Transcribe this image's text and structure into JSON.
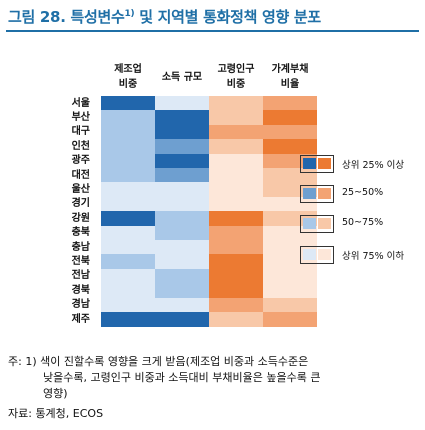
{
  "figure": {
    "title": "그림 28. 특성변수",
    "title_sup": "1)",
    "title_rest": " 및 지역별 통화정책 영향 분포"
  },
  "chart_data": {
    "type": "heatmap",
    "columns": [
      "제조업\n비중",
      "소득 규모",
      "고령인구\n비중",
      "가계부채\n비율"
    ],
    "rows": [
      "서울",
      "부산",
      "대구",
      "인천",
      "광주",
      "대전",
      "울산",
      "경기",
      "강원",
      "충북",
      "충남",
      "전북",
      "전남",
      "경북",
      "경남",
      "제주"
    ],
    "levels": [
      [
        1,
        4,
        3,
        2
      ],
      [
        3,
        1,
        3,
        1
      ],
      [
        3,
        1,
        2,
        2
      ],
      [
        3,
        2,
        3,
        1
      ],
      [
        3,
        1,
        4,
        2
      ],
      [
        3,
        2,
        4,
        3
      ],
      [
        4,
        4,
        4,
        3
      ],
      [
        4,
        4,
        4,
        4
      ],
      [
        1,
        3,
        1,
        3
      ],
      [
        4,
        3,
        2,
        4
      ],
      [
        4,
        4,
        2,
        4
      ],
      [
        3,
        4,
        1,
        4
      ],
      [
        4,
        3,
        1,
        4
      ],
      [
        4,
        3,
        1,
        4
      ],
      [
        4,
        4,
        2,
        3
      ],
      [
        1,
        1,
        3,
        2
      ]
    ],
    "legend": [
      {
        "label": "상위 25% 이상"
      },
      {
        "label": "25~50%"
      },
      {
        "label": "50~75%"
      },
      {
        "label": "상위 75% 이하"
      }
    ],
    "palette": {
      "blue": [
        "#2166ac",
        "#6e9fd0",
        "#a9c8e8",
        "#dde9f6"
      ],
      "orange": [
        "#ec7a32",
        "#f3a373",
        "#f8c8a8",
        "#fde7d9"
      ]
    },
    "column_scheme": [
      "blue",
      "blue",
      "orange",
      "orange"
    ]
  },
  "note": {
    "line1": "주: 1) 색이 진할수록 영향을 크게 받음(제조업 비중과 소득수준은",
    "line2": "낮을수록, 고령인구 비중과 소득대비 부채비율은 높을수록 큰",
    "line3": "영향)"
  },
  "source": "자료: 통계청, ECOS"
}
